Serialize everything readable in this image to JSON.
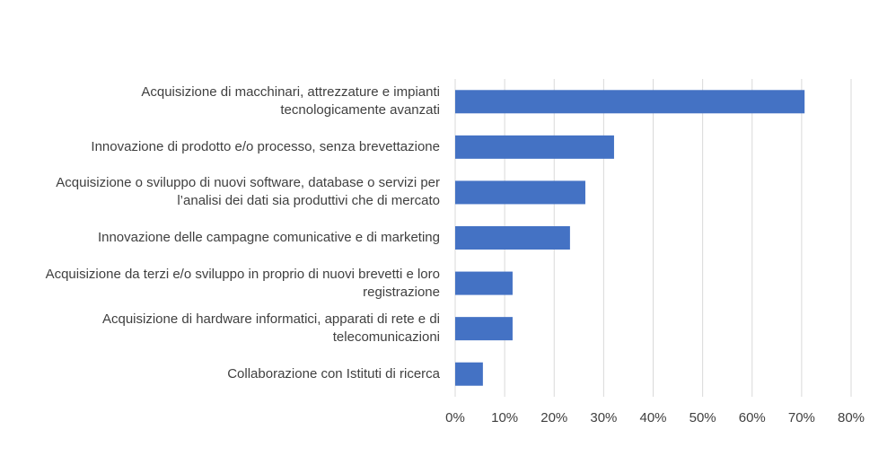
{
  "chart_data": {
    "type": "bar",
    "orientation": "horizontal",
    "categories": [
      "Acquisizione di macchinari, attrezzature e impianti tecnologicamente avanzati",
      "Innovazione di prodotto e/o processo, senza brevettazione",
      "Acquisizione o sviluppo di nuovi software, database o servizi per l’analisi dei dati sia produttivi che di mercato",
      "Innovazione delle campagne comunicative e di marketing",
      "Acquisizione da terzi e/o sviluppo in proprio di nuovi brevetti e loro registrazione",
      "Acquisizione di hardware informatici, apparati di rete e di telecomunicazioni",
      "Collaborazione con Istituti di ricerca"
    ],
    "values": [
      70.6,
      32.1,
      26.3,
      23.2,
      11.6,
      11.6,
      5.6
    ],
    "color": "#4472c4",
    "xlim": [
      0,
      80
    ],
    "xticks": [
      {
        "value": 0,
        "label": "0%"
      },
      {
        "value": 10,
        "label": "10%"
      },
      {
        "value": 20,
        "label": "20%"
      },
      {
        "value": 30,
        "label": "30%"
      },
      {
        "value": 40,
        "label": "40%"
      },
      {
        "value": 50,
        "label": "50%"
      },
      {
        "value": 60,
        "label": "60%"
      },
      {
        "value": 70,
        "label": "70%"
      },
      {
        "value": 80,
        "label": "80%"
      }
    ],
    "grid": true
  }
}
